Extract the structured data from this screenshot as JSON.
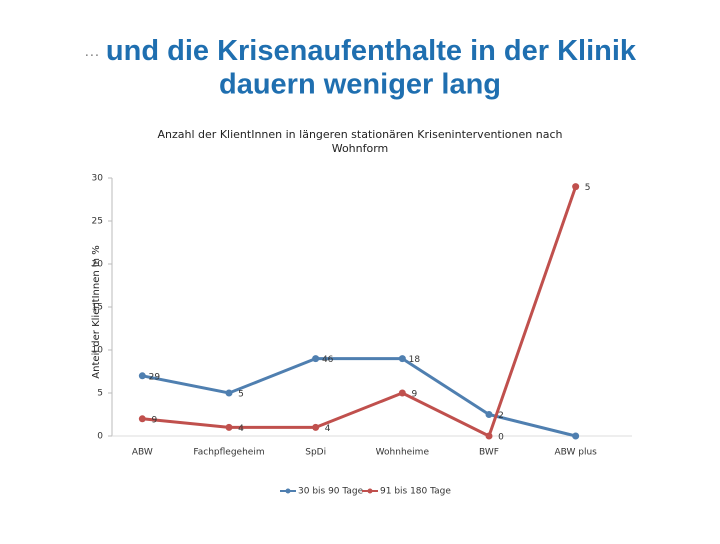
{
  "slide_title": {
    "prefix": "…",
    "lines": [
      "und die Krisenaufenthalte in der Klinik",
      "dauern weniger lang"
    ]
  },
  "chart_data": {
    "type": "line",
    "title": "Anzahl der KlientInnen in längeren stationären Kriseninterventionen nach Wohnform",
    "y_label": "Anteil der KlientInnen in %",
    "categories": [
      "ABW",
      "Fachpflegeheim",
      "SpDi",
      "Wohnheime",
      "BWF",
      "ABW plus"
    ],
    "ylim": [
      0,
      30
    ],
    "yticks": [
      0,
      5,
      10,
      15,
      20,
      25,
      30
    ],
    "legend": "bottom",
    "series": [
      {
        "name": "30 bis 90 Tage",
        "color": "#4f7fb0",
        "values": [
          7,
          5,
          9,
          9,
          2.5,
          0
        ],
        "counts": [
          29,
          5,
          46,
          18,
          2,
          null
        ]
      },
      {
        "name": "91 bis 180 Tage",
        "color": "#c0504d",
        "values": [
          2,
          1,
          1,
          5,
          0,
          29
        ],
        "counts": [
          9,
          4,
          4,
          9,
          0,
          5
        ]
      }
    ]
  }
}
